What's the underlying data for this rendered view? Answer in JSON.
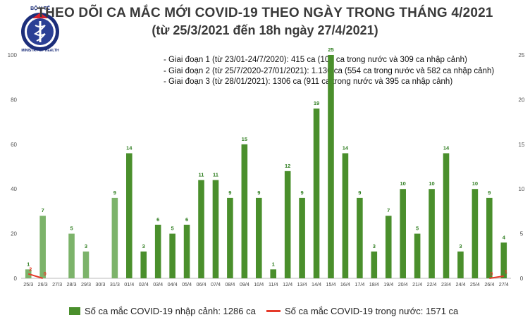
{
  "header": {
    "title": "THEO DÕI CA MẮC MỚI COVID-19 THEO NGÀY TRONG THÁNG 4/2021",
    "subtitle": "(từ 25/3/2021 đến 18h ngày 27/4/2021)"
  },
  "logo": {
    "top_text": "BỘ Y TẾ",
    "bottom_text": "MINISTRY OF HEALTH"
  },
  "notes": [
    "- Giai đoạn 1 (từ 23/01-24/7/2020): 415 ca (106 ca trong nước và 309 ca nhập cảnh)",
    "- Giai đoạn 2 (từ 25/7/2020-27/01/2021): 1.136 ca (554 ca trong nước và 582 ca nhập cảnh)",
    "- Giai đoạn 3 (từ 28/01/2021): 1306 ca (911 ca trong nước và 395 ca nhập cảnh)"
  ],
  "legend": {
    "bar_label": "Số ca mắc COVID-19 nhập cảnh: 1286 ca",
    "line_label": "Số ca mắc COVID-19 trong nước: 1571 ca"
  },
  "colors": {
    "bar_light": "#7cb36a",
    "bar": "#4a8f2c",
    "line": "#e53a2a",
    "label": "#2e7d1f"
  },
  "chart_data": {
    "type": "bar",
    "categories": [
      "25/3",
      "26/3",
      "27/3",
      "28/3",
      "29/3",
      "30/3",
      "31/3",
      "01/4",
      "02/4",
      "03/4",
      "04/4",
      "05/4",
      "06/4",
      "07/4",
      "08/4",
      "09/4",
      "10/4",
      "11/4",
      "12/4",
      "13/4",
      "14/4",
      "15/4",
      "16/4",
      "17/4",
      "18/4",
      "19/4",
      "20/4",
      "21/4",
      "22/4",
      "23/4",
      "24/4",
      "25/4",
      "26/4",
      "27/4"
    ],
    "series": [
      {
        "name": "Số ca mắc COVID-19 nhập cảnh: 1286 ca",
        "type": "bar",
        "axis": "right",
        "values": [
          1,
          7,
          0,
          5,
          3,
          0,
          9,
          14,
          3,
          6,
          5,
          6,
          11,
          11,
          9,
          15,
          9,
          1,
          12,
          9,
          19,
          25,
          14,
          9,
          3,
          7,
          10,
          5,
          10,
          14,
          3,
          10,
          9,
          4
        ],
        "labels": [
          "1",
          "7",
          "",
          "5",
          "3",
          "",
          "9",
          "14",
          "3",
          "6",
          "5",
          "6",
          "11",
          "11",
          "9",
          "15",
          "9",
          "1",
          "12",
          "9",
          "19",
          "25",
          "14",
          "9",
          "3",
          "7",
          "10",
          "5",
          "10",
          "14",
          "3",
          "10",
          "9",
          "4"
        ]
      },
      {
        "name": "Số ca mắc COVID-19 trong nước: 1571 ca",
        "type": "line",
        "axis": "left",
        "points": [
          {
            "category": "25/3",
            "value": 2,
            "label": "2"
          },
          {
            "category": "26/3",
            "value": 0,
            "label": "0"
          },
          {
            "category": "26/4",
            "value": 0,
            "label": "0"
          },
          {
            "category": "27/4",
            "value": 1,
            "label": "1"
          }
        ]
      }
    ],
    "left_axis": {
      "ylim": [
        0,
        100
      ],
      "ticks": [
        "0",
        "20",
        "40",
        "60",
        "80",
        "100"
      ]
    },
    "right_axis": {
      "ylim": [
        0,
        25
      ],
      "ticks": [
        "0",
        "5",
        "10",
        "15",
        "20",
        "25"
      ]
    },
    "title": "THEO DÕI CA MẮC MỚI COVID-19 THEO NGÀY TRONG THÁNG 4/2021",
    "grid": false,
    "legend_position": "bottom"
  }
}
